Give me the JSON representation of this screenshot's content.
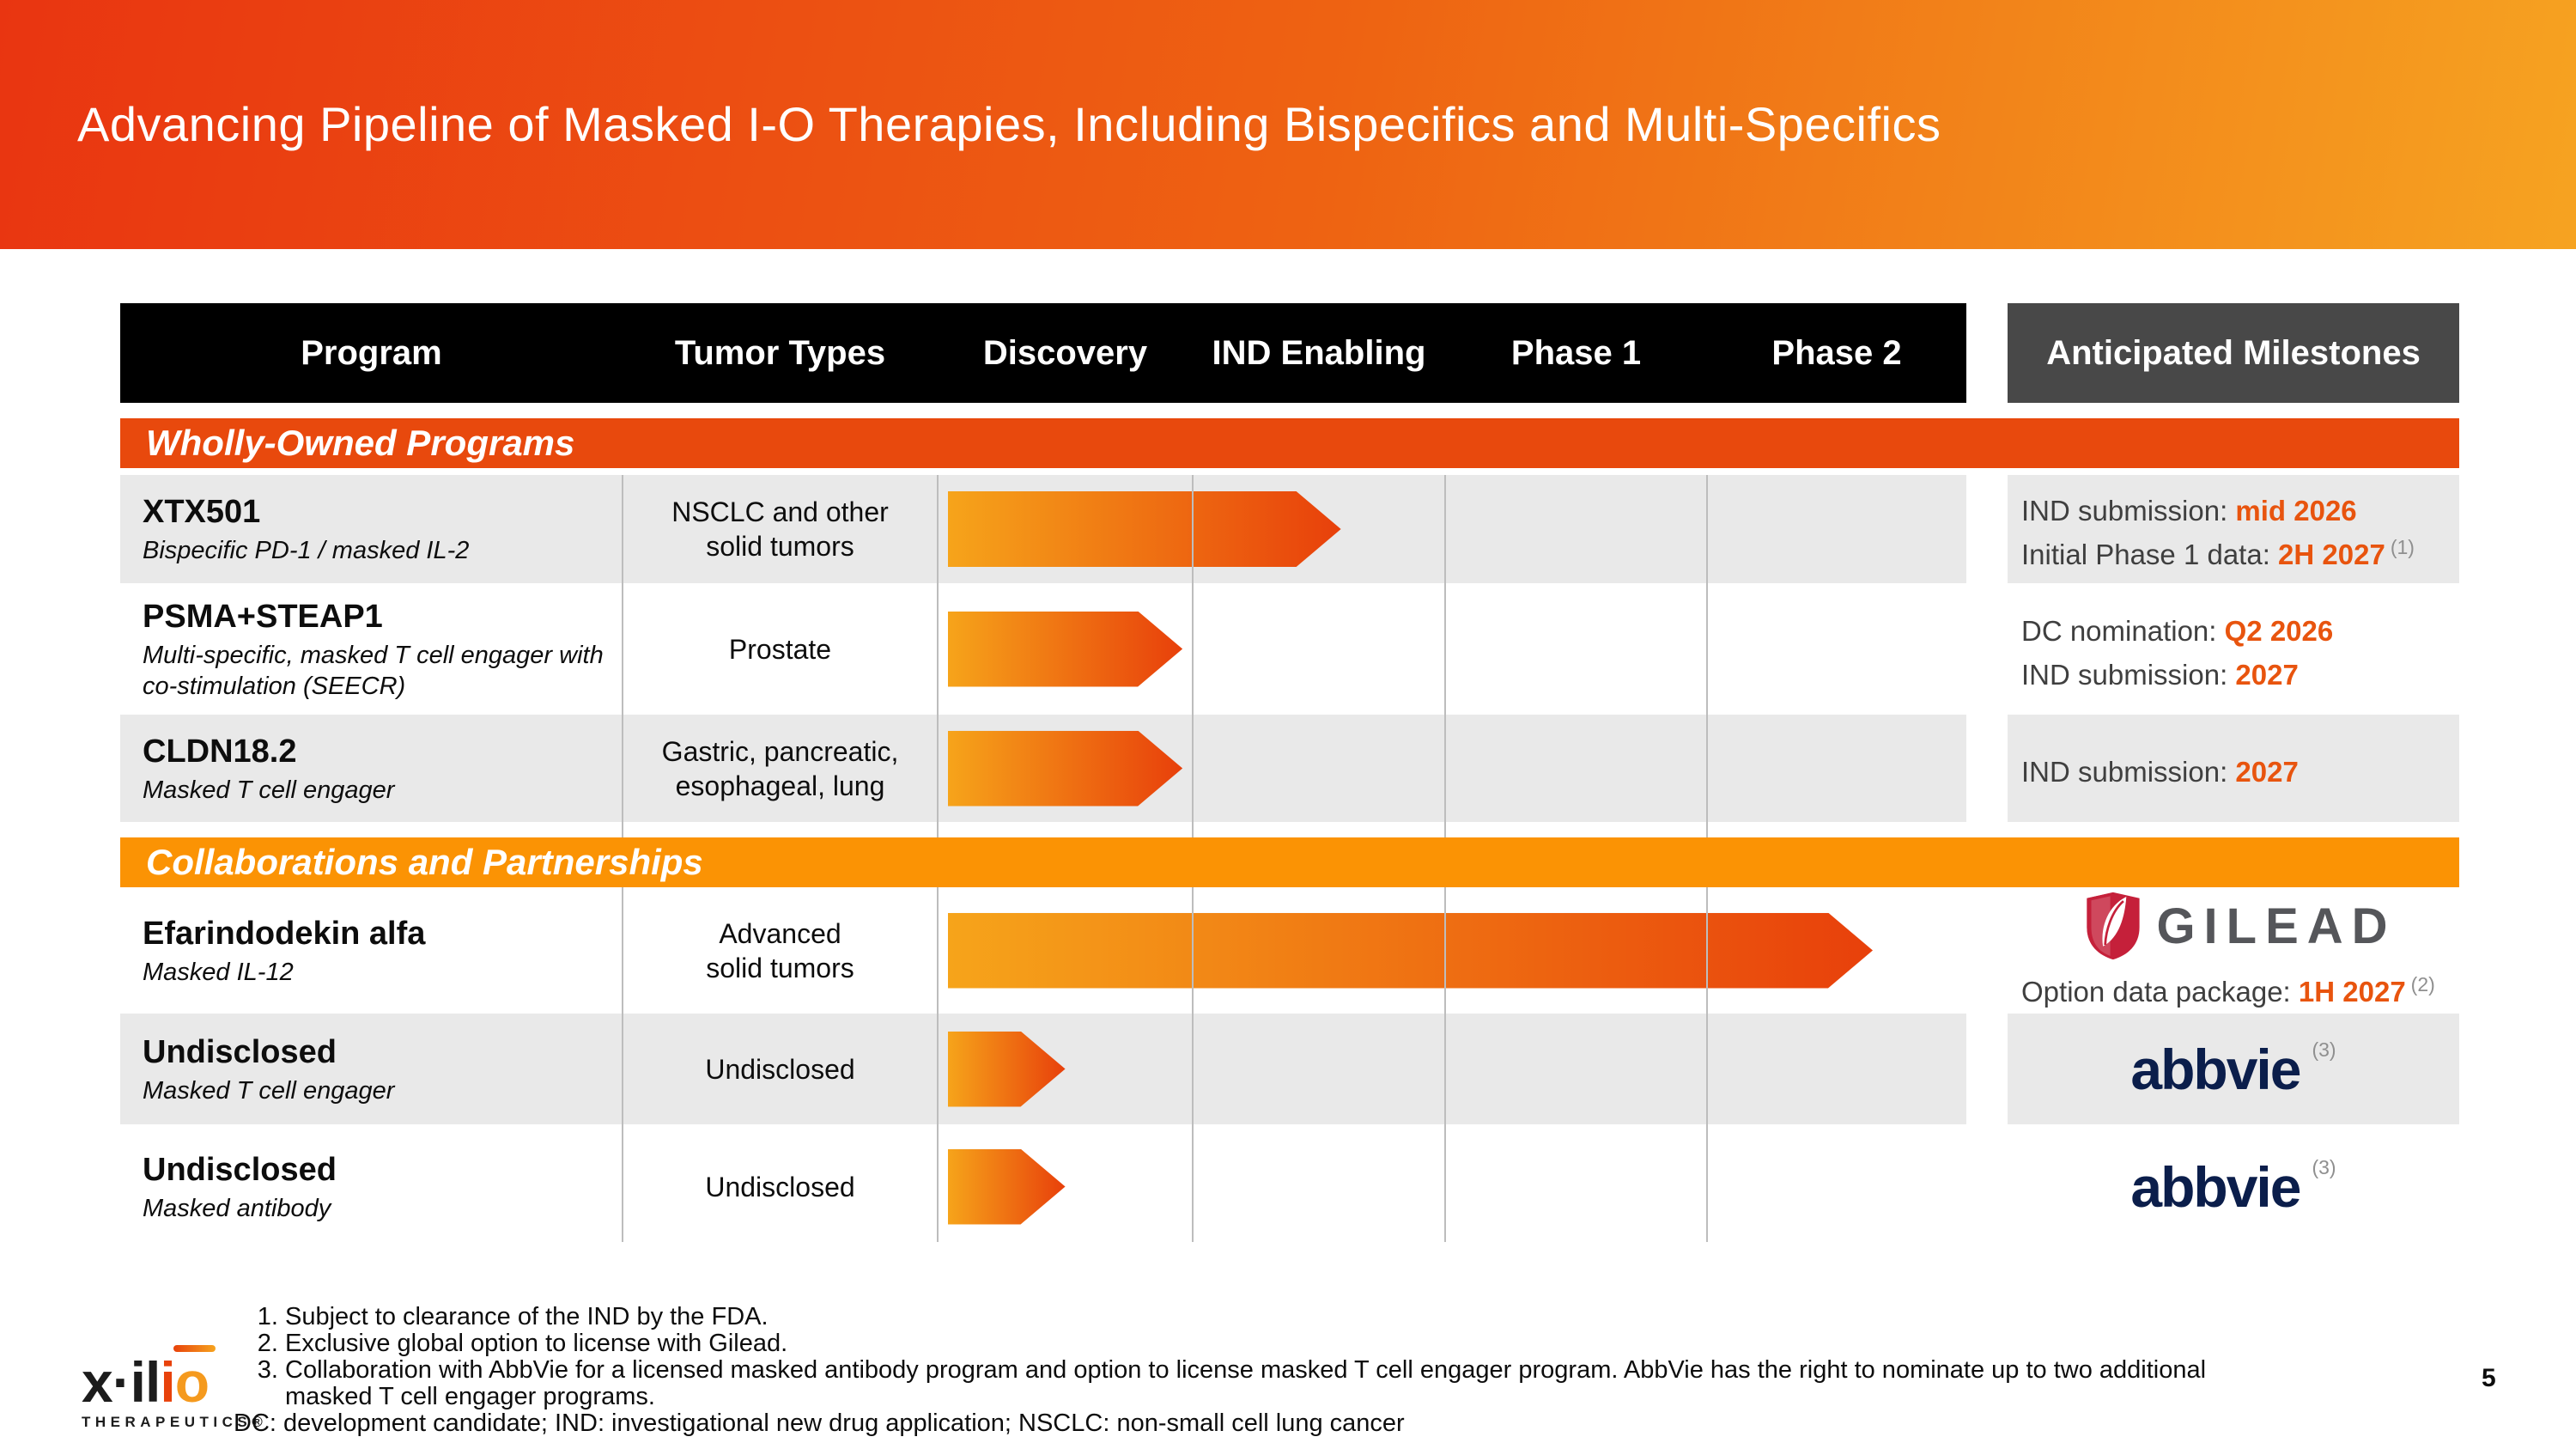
{
  "slide": {
    "title": "Advancing Pipeline of Masked I-O Therapies, Including Bispecifics and Multi-Specifics",
    "page_number": "5"
  },
  "header": {
    "columns": [
      "Program",
      "Tumor Types",
      "Discovery",
      "IND Enabling",
      "Phase 1",
      "Phase 2"
    ],
    "milestones": "Anticipated Milestones"
  },
  "colors": {
    "banner_start": "#e93511",
    "banner_end": "#f6a321",
    "section1_bar": "#e8490d",
    "section2_bar": "#fb9304",
    "arrow_gradient_start": "#f6a41a",
    "arrow_gradient_end": "#e8400b",
    "milestone_accent": "#e8540e",
    "row_gray": "#e9e9e9",
    "header_black": "#000000",
    "milestones_header_gray": "#484848",
    "gilead_red": "#c5203a",
    "gilead_text": "#55565a",
    "abbvie_navy": "#0b1e4b"
  },
  "sections": [
    {
      "label": "Wholly-Owned Programs",
      "rows": [
        {
          "program": "XTX501",
          "modality": "Bispecific PD-1 / masked IL-2",
          "tumor_types": "NSCLC and other\nsolid tumors",
          "stage_reached": "IND Enabling",
          "timeline_pct": 38.2,
          "milestones": [
            {
              "label": "IND submission:",
              "date": "mid 2026",
              "footnote": ""
            },
            {
              "label": "Initial Phase 1 data:",
              "date": "2H 2027",
              "footnote": "(1)"
            }
          ]
        },
        {
          "program": "PSMA+STEAP1",
          "modality": "Multi-specific, masked T cell engager with\nco-stimulation (SEECR)",
          "tumor_types": "Prostate",
          "stage_reached": "Discovery",
          "timeline_pct": 22.8,
          "milestones": [
            {
              "label": "DC nomination:",
              "date": "Q2 2026",
              "footnote": ""
            },
            {
              "label": "IND submission:",
              "date": "2027",
              "footnote": ""
            }
          ]
        },
        {
          "program": "CLDN18.2",
          "modality": "Masked T cell engager",
          "tumor_types": "Gastric, pancreatic,\nesophageal, lung",
          "stage_reached": "Discovery",
          "timeline_pct": 22.8,
          "milestones": [
            {
              "label": "IND submission:",
              "date": "2027",
              "footnote": ""
            }
          ]
        }
      ]
    },
    {
      "label": "Collaborations and Partnerships",
      "rows": [
        {
          "program": "Efarindodekin alfa",
          "modality": "Masked IL-12",
          "tumor_types": "Advanced\nsolid tumors",
          "stage_reached": "Phase 2",
          "timeline_pct": 89.9,
          "partner": "Gilead",
          "partner_wordmark": "GILEAD",
          "milestones": [
            {
              "label": "Option data package:",
              "date": "1H 2027",
              "footnote": "(2)"
            }
          ]
        },
        {
          "program": "Undisclosed",
          "modality": "Masked T cell engager",
          "tumor_types": "Undisclosed",
          "stage_reached": "Discovery",
          "timeline_pct": 11.4,
          "partner": "AbbVie",
          "partner_wordmark": "abbvie",
          "logo_footnote": "(3)"
        },
        {
          "program": "Undisclosed",
          "modality": "Masked antibody",
          "tumor_types": "Undisclosed",
          "stage_reached": "Discovery",
          "timeline_pct": 11.4,
          "partner": "AbbVie",
          "partner_wordmark": "abbvie",
          "logo_footnote": "(3)"
        }
      ]
    }
  ],
  "footnotes": [
    "Subject to clearance of the IND by the FDA.",
    "Exclusive global option to license with Gilead.",
    "Collaboration with AbbVie for a licensed masked antibody program and option to license masked T cell engager program. AbbVie has the right to nominate up to two additional masked T cell engager programs."
  ],
  "abbreviations": "DC: development candidate; IND: investigational new drug application; NSCLC: non-small cell lung cancer",
  "brand": {
    "wordmark_prefix": "x·il",
    "wordmark_i": "i",
    "wordmark_o": "o",
    "subtext": "THERAPEUTICS®"
  }
}
